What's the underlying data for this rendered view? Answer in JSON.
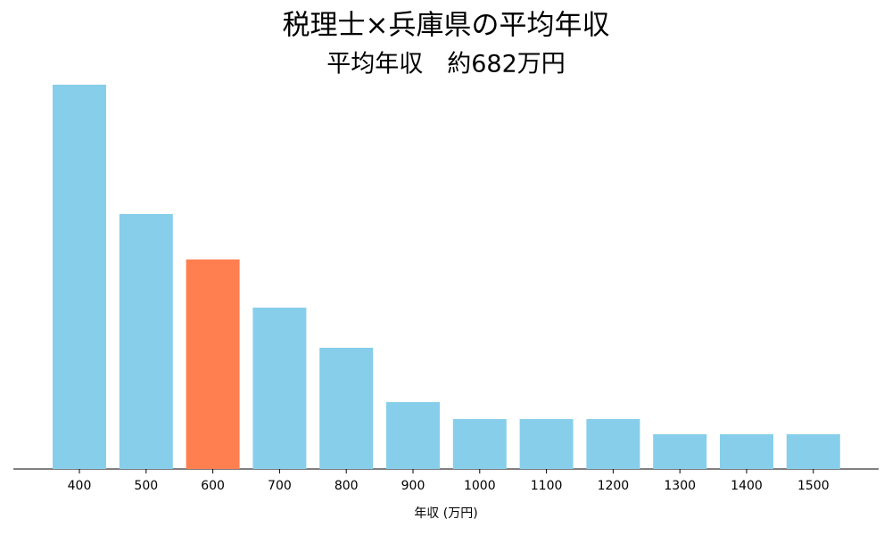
{
  "chart_data": {
    "type": "bar",
    "title": "税理士×兵庫県の平均年収",
    "subtitle": "平均年収　約682万円",
    "x_label": "年収 (万円)",
    "categories": [
      "400",
      "500",
      "600",
      "700",
      "800",
      "900",
      "1000",
      "1100",
      "1200",
      "1300",
      "1400",
      "1500"
    ],
    "values": [
      431,
      286,
      235,
      181,
      136,
      75,
      56,
      56,
      56,
      39,
      39,
      39
    ],
    "colors": [
      "#87ceeb",
      "#87ceeb",
      "#ff7f50",
      "#87ceeb",
      "#87ceeb",
      "#87ceeb",
      "#87ceeb",
      "#87ceeb",
      "#87ceeb",
      "#87ceeb",
      "#87ceeb",
      "#87ceeb"
    ]
  }
}
